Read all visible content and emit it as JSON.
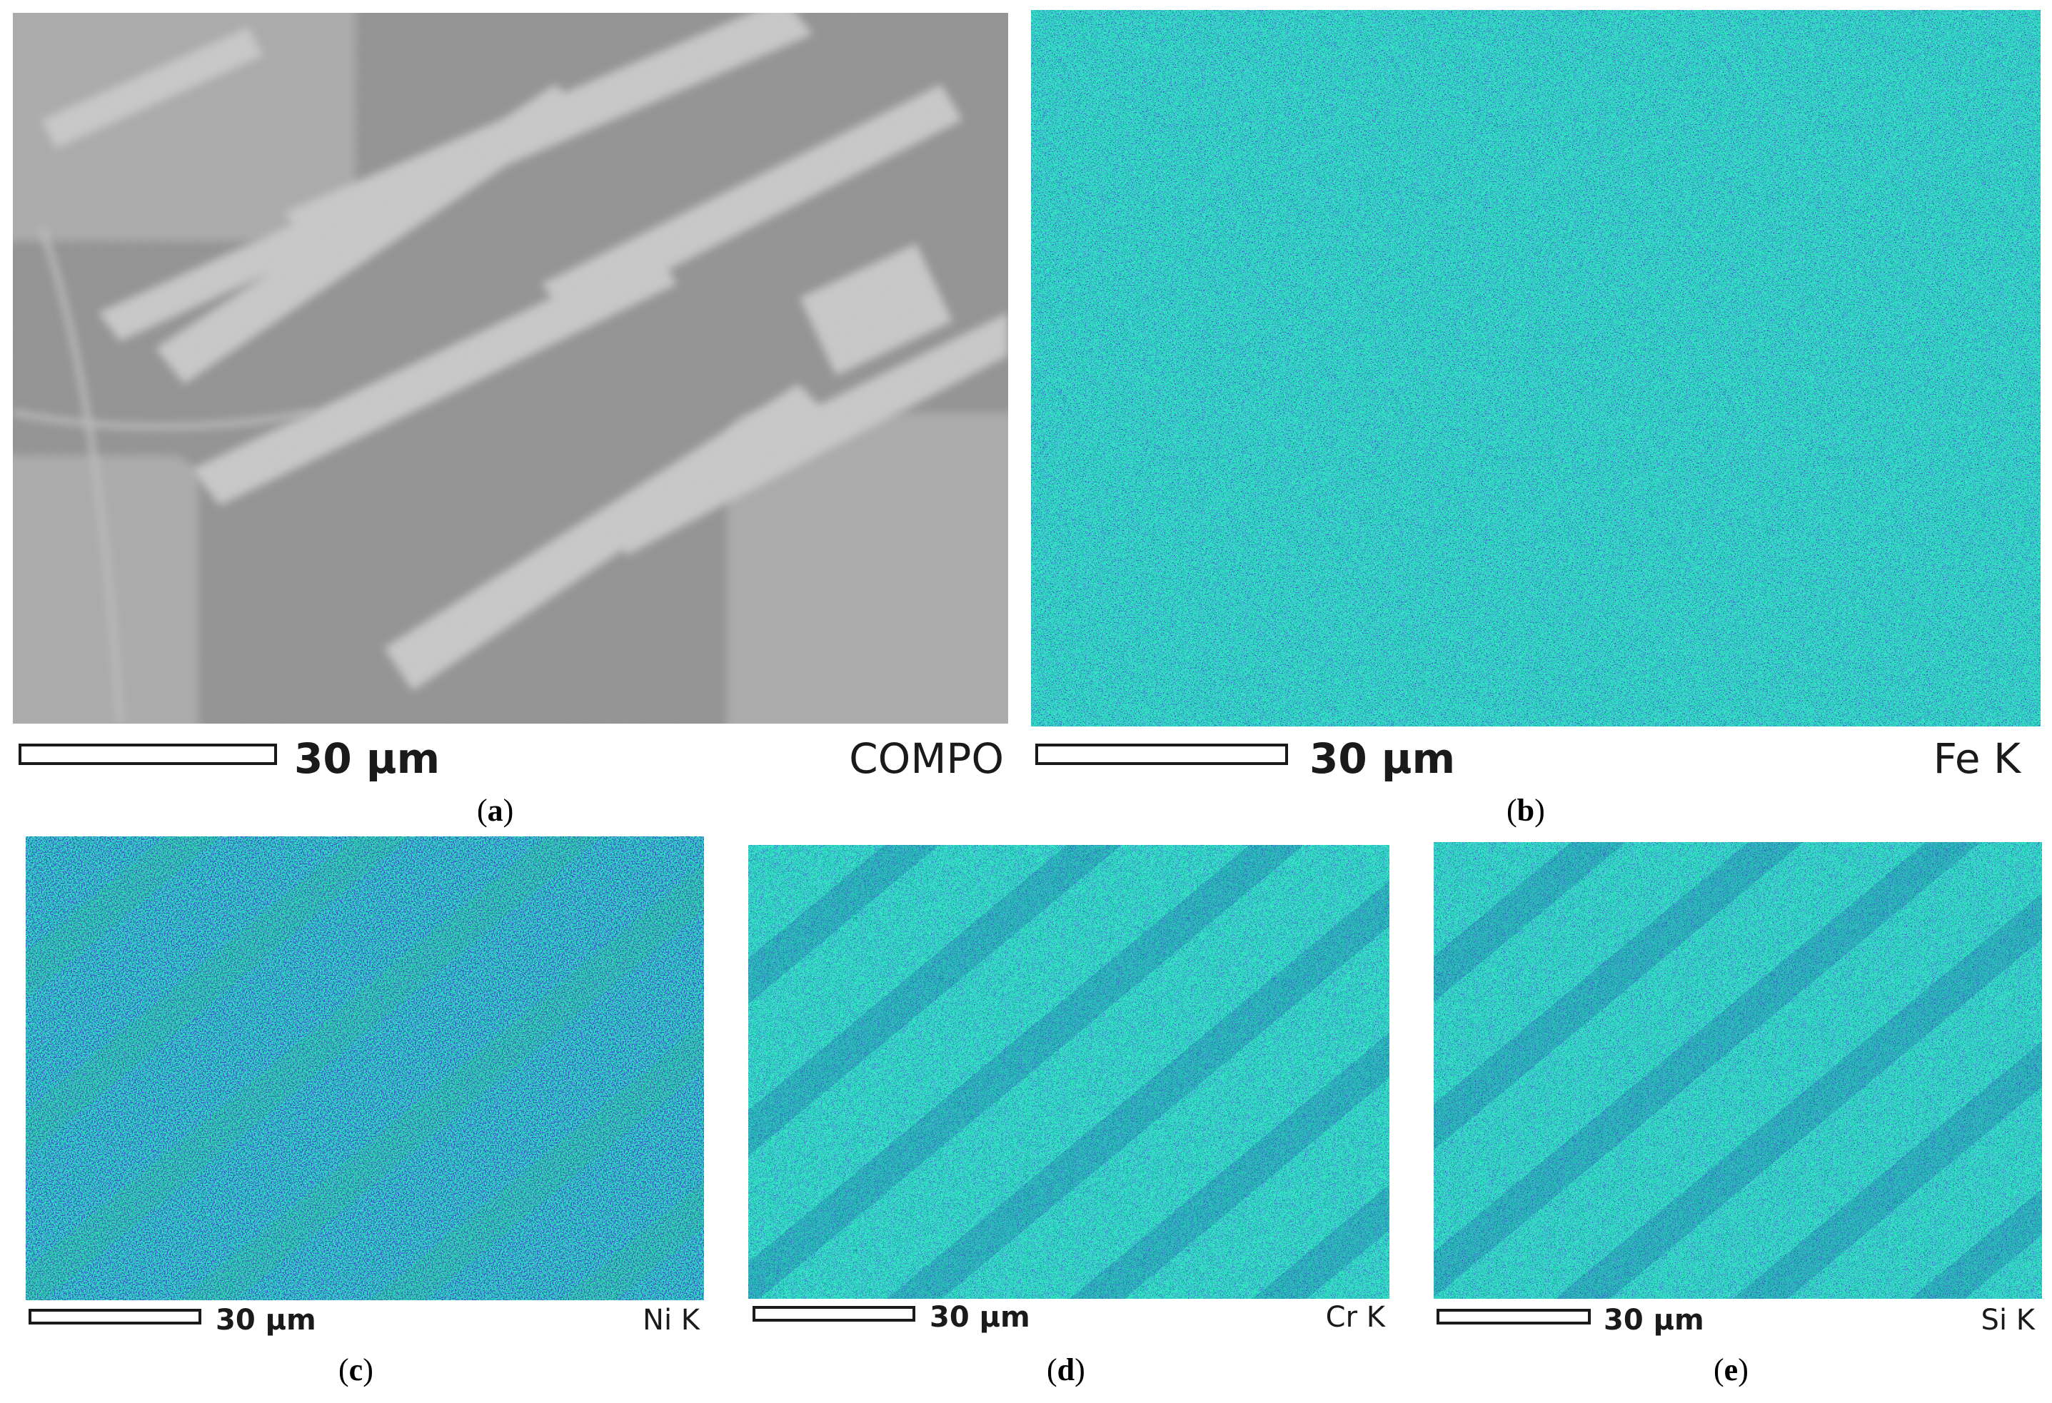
{
  "panels": [
    {
      "id": "a",
      "caption": "a",
      "scale_label": "30 μm",
      "signal_label": "COMPO",
      "kind": "sem"
    },
    {
      "id": "b",
      "caption": "b",
      "scale_label": "30 μm",
      "signal_label": "Fe K",
      "kind": "map",
      "level": 0.5,
      "bands": false
    },
    {
      "id": "c",
      "caption": "c",
      "scale_label": "30 μm",
      "signal_label": "Ni K",
      "kind": "map",
      "level": 0.25,
      "bands": true
    },
    {
      "id": "d",
      "caption": "d",
      "scale_label": "30 μm",
      "signal_label": "Cr K",
      "kind": "map",
      "level": 0.6,
      "bands": true
    },
    {
      "id": "e",
      "caption": "e",
      "scale_label": "30 μm",
      "signal_label": "Si K",
      "kind": "map",
      "level": 0.55,
      "bands": true
    }
  ],
  "colors": {
    "low": "#0a1a8c",
    "mid": "#1a7fd0",
    "high": "#2bd36a",
    "peak": "#e03a2a",
    "sem_bg": "#8e8e8e",
    "sem_light": "#cfcfcf"
  }
}
